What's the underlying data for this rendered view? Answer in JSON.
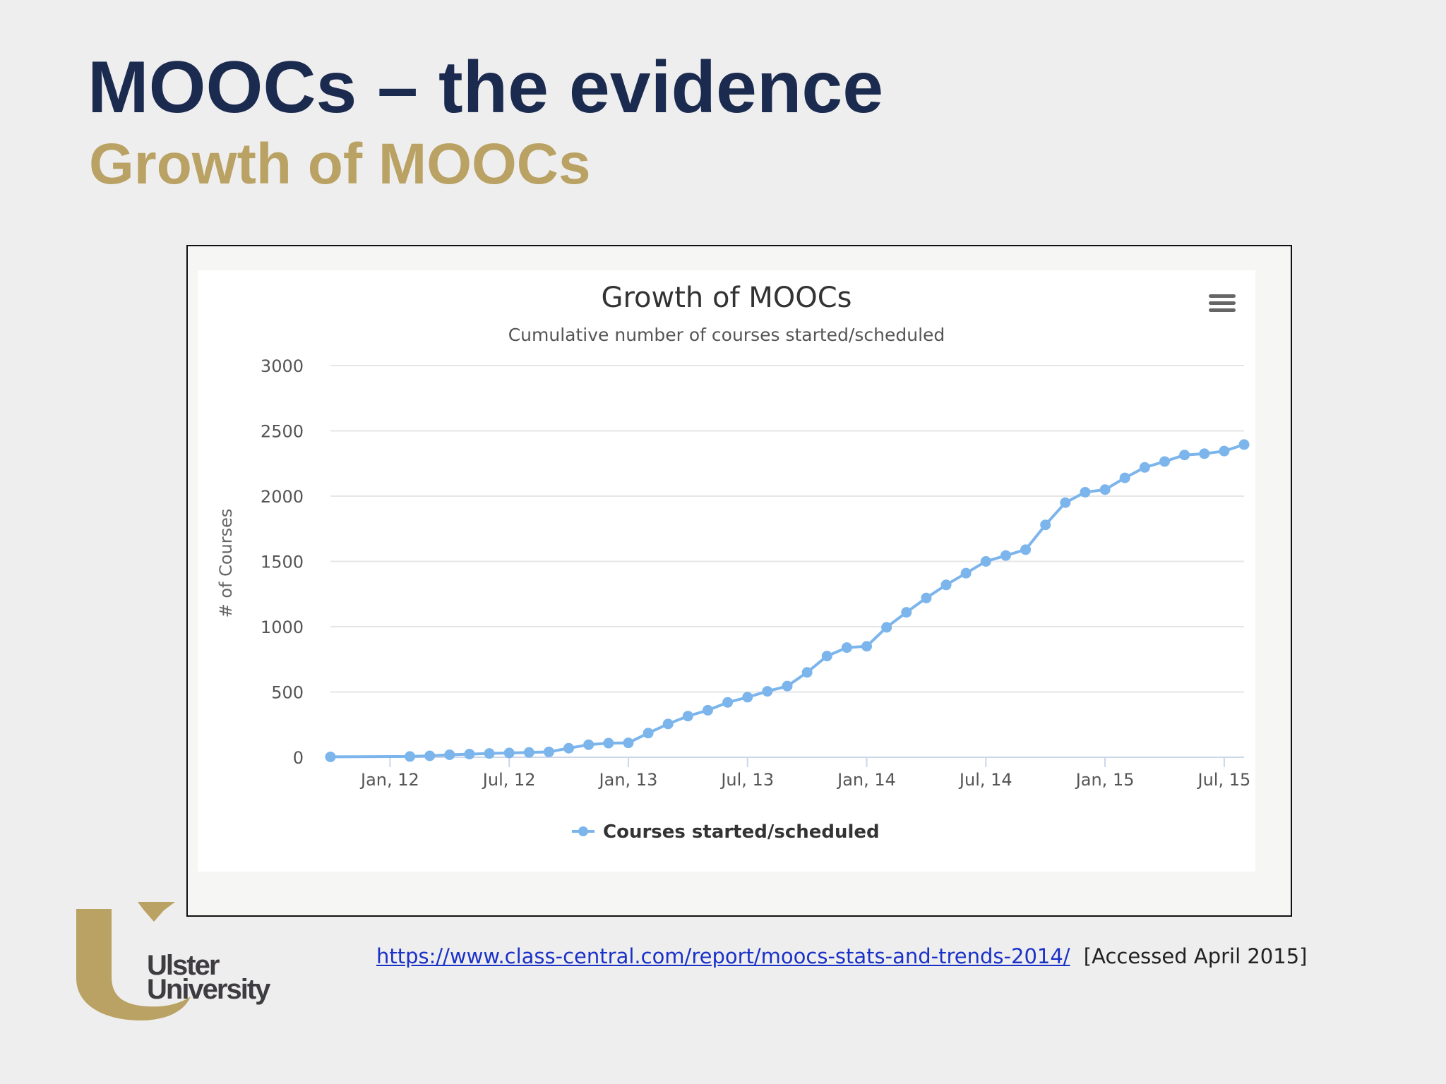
{
  "slide": {
    "title": "MOOCs – the evidence",
    "subtitle": "Growth of MOOCs"
  },
  "chart_menu": {
    "icon": "hamburger-menu-icon"
  },
  "chart_data": {
    "type": "line",
    "title": "Growth of MOOCs",
    "subtitle": "Cumulative number of courses started/scheduled",
    "ylabel": "# of Courses",
    "xlabel": "",
    "ylim": [
      0,
      3000
    ],
    "y_ticks": [
      0,
      500,
      1000,
      1500,
      2000,
      2500,
      3000
    ],
    "x_range": [
      "2011-10",
      "2015-08"
    ],
    "x_ticks": [
      {
        "date": "2012-01",
        "label": "Jan, 12"
      },
      {
        "date": "2012-07",
        "label": "Jul, 12"
      },
      {
        "date": "2013-01",
        "label": "Jan, 13"
      },
      {
        "date": "2013-07",
        "label": "Jul, 13"
      },
      {
        "date": "2014-01",
        "label": "Jan, 14"
      },
      {
        "date": "2014-07",
        "label": "Jul, 14"
      },
      {
        "date": "2015-01",
        "label": "Jan, 15"
      },
      {
        "date": "2015-07",
        "label": "Jul, 15"
      }
    ],
    "grid": true,
    "legend": "bottom-center",
    "colors": {
      "series": "#7cb5ec",
      "grid": "#e6e6e6",
      "axis": "#ccd6eb",
      "text": "#333333",
      "label": "#555555"
    },
    "series": [
      {
        "name": "Courses started/scheduled",
        "x": [
          "2011-10",
          "2012-02",
          "2012-03",
          "2012-04",
          "2012-05",
          "2012-06",
          "2012-07",
          "2012-08",
          "2012-09",
          "2012-10",
          "2012-11",
          "2012-12",
          "2013-01",
          "2013-02",
          "2013-03",
          "2013-04",
          "2013-05",
          "2013-06",
          "2013-07",
          "2013-08",
          "2013-09",
          "2013-10",
          "2013-11",
          "2013-12",
          "2014-01",
          "2014-02",
          "2014-03",
          "2014-04",
          "2014-05",
          "2014-06",
          "2014-07",
          "2014-08",
          "2014-09",
          "2014-10",
          "2014-11",
          "2014-12",
          "2015-01",
          "2015-02",
          "2015-03",
          "2015-04",
          "2015-05",
          "2015-06",
          "2015-07",
          "2015-08"
        ],
        "values": [
          3,
          6,
          11,
          19,
          24,
          29,
          33,
          37,
          41,
          69,
          96,
          108,
          110,
          185,
          255,
          315,
          360,
          420,
          460,
          505,
          545,
          650,
          775,
          840,
          850,
          995,
          1110,
          1220,
          1320,
          1410,
          1500,
          1545,
          1590,
          1780,
          1950,
          2030,
          2050,
          2140,
          2220,
          2265,
          2315,
          2325,
          2345,
          2395
        ]
      }
    ]
  },
  "source": {
    "url_text": "https://www.class-central.com/report/moocs-stats-and-trends-2014/",
    "accessed": "[Accessed April 2015]"
  },
  "logo": {
    "line1": "Ulster",
    "line2": "University",
    "accent": "#b9a263"
  }
}
